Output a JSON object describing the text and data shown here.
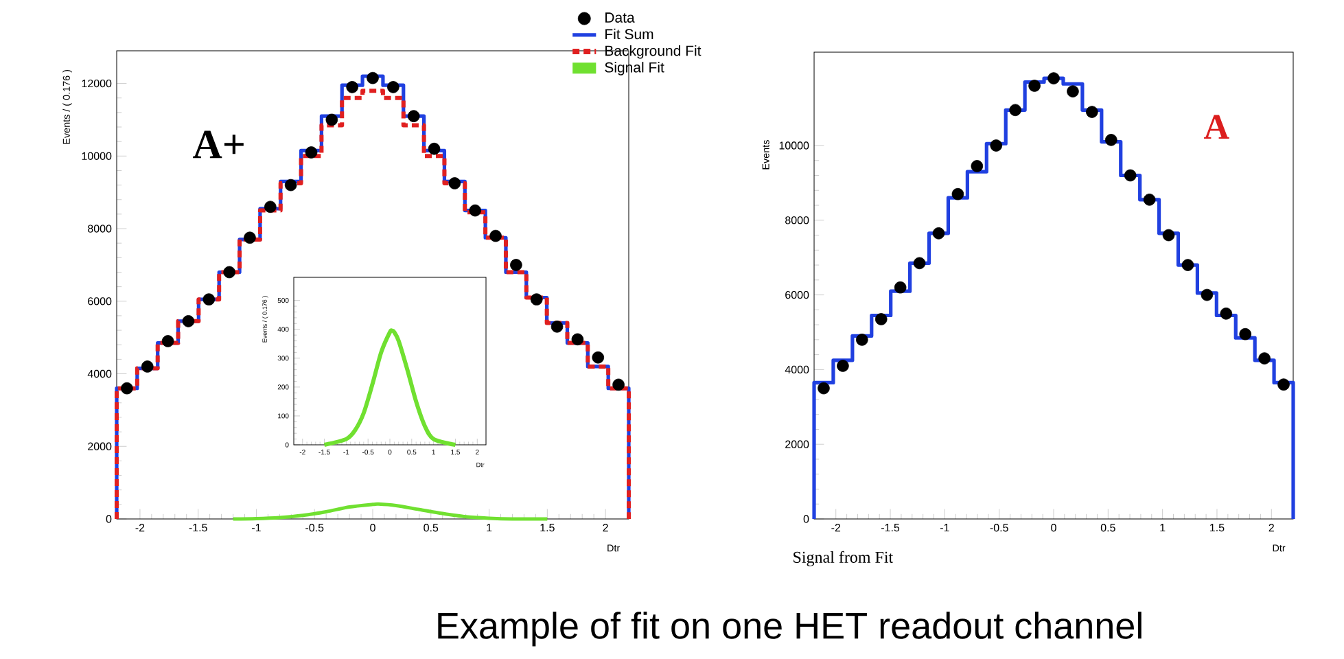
{
  "chart_data": [
    {
      "type": "histogram",
      "xlabel": "Dtr",
      "ylabel": "Events / ( 0.176 )",
      "annotations": [
        "A+",
        "Example of fit on one HET readout channel"
      ],
      "bins": [
        -2.2,
        -2.024,
        -1.848,
        -1.672,
        -1.496,
        -1.32,
        -1.144,
        -0.968,
        -0.792,
        -0.616,
        -0.44,
        -0.264,
        -0.088,
        0.088,
        0.264,
        0.44,
        0.616,
        0.792,
        0.968,
        1.144,
        1.32,
        1.496,
        1.672,
        1.848,
        2.024,
        2.2
      ],
      "xlim": [
        -2.2,
        2.2
      ],
      "ylim": [
        0,
        12900
      ],
      "xticks": [
        -2,
        -1.5,
        -1,
        -0.5,
        0,
        0.5,
        1,
        1.5,
        2
      ],
      "yticks": [
        0,
        2000,
        4000,
        6000,
        8000,
        10000,
        12000
      ],
      "legend": "top right",
      "grid": false,
      "series": [
        {
          "name": "Data",
          "type": "scatter",
          "color": "#000000",
          "x": [
            -2.112,
            -1.936,
            -1.76,
            -1.584,
            -1.408,
            -1.232,
            -1.056,
            -0.88,
            -0.704,
            -0.528,
            -0.352,
            -0.176,
            0,
            0.176,
            0.352,
            0.528,
            0.704,
            0.88,
            1.056,
            1.232,
            1.408,
            1.584,
            1.76,
            1.936,
            2.112
          ],
          "values": [
            3600,
            4200,
            4900,
            5450,
            6050,
            6800,
            7750,
            8600,
            9200,
            10100,
            11000,
            11900,
            12150,
            11900,
            11100,
            10200,
            9250,
            8500,
            7800,
            7000,
            6050,
            5300,
            4950,
            4450,
            3700
          ]
        },
        {
          "name": "Fit Sum",
          "color": "#2040e0",
          "values": [
            3600,
            4150,
            4850,
            5450,
            6050,
            6800,
            7700,
            8550,
            9300,
            10150,
            11100,
            11950,
            12200,
            11950,
            11100,
            10150,
            9300,
            8500,
            7750,
            6800,
            6100,
            5400,
            4850,
            4200,
            3600
          ]
        },
        {
          "name": "Background Fit",
          "color": "#e02020",
          "line_style": "dashed",
          "values": [
            3600,
            4150,
            4850,
            5450,
            6050,
            6800,
            7700,
            8500,
            9250,
            10000,
            10850,
            11600,
            11800,
            11600,
            10850,
            10000,
            9250,
            8450,
            7750,
            6800,
            6100,
            5400,
            4850,
            4200,
            3600
          ]
        },
        {
          "name": "Signal Fit",
          "type": "line",
          "color": "#70e030",
          "x": [
            -1.2,
            -1,
            -0.8,
            -0.6,
            -0.4,
            -0.2,
            0,
            0.05,
            0.2,
            0.4,
            0.6,
            0.8,
            1,
            1.2,
            1.5
          ],
          "values": [
            0,
            10,
            40,
            100,
            200,
            330,
            400,
            410,
            370,
            260,
            150,
            60,
            20,
            0,
            0
          ]
        }
      ]
    },
    {
      "type": "histogram",
      "xlabel": "Dtr",
      "ylabel": "Events",
      "annotations": [
        "A",
        "Signal from Fit"
      ],
      "bins": [
        -2.2,
        -2.024,
        -1.848,
        -1.672,
        -1.496,
        -1.32,
        -1.144,
        -0.968,
        -0.792,
        -0.616,
        -0.44,
        -0.264,
        -0.088,
        0.088,
        0.264,
        0.44,
        0.616,
        0.792,
        0.968,
        1.144,
        1.32,
        1.496,
        1.672,
        1.848,
        2.024,
        2.2
      ],
      "xlim": [
        -2.2,
        2.2
      ],
      "ylim": [
        0,
        12500
      ],
      "xticks": [
        -2,
        -1.5,
        -1,
        -0.5,
        0,
        0.5,
        1,
        1.5,
        2
      ],
      "yticks": [
        0,
        2000,
        4000,
        6000,
        8000,
        10000
      ],
      "grid": false,
      "series": [
        {
          "type": "scatter",
          "color": "#000000",
          "x": [
            -2.112,
            -1.936,
            -1.76,
            -1.584,
            -1.408,
            -1.232,
            -1.056,
            -0.88,
            -0.704,
            -0.528,
            -0.352,
            -0.176,
            0,
            0.176,
            0.352,
            0.528,
            0.704,
            0.88,
            1.056,
            1.232,
            1.408,
            1.584,
            1.76,
            1.936,
            2.112
          ],
          "values": [
            3500,
            4100,
            4800,
            5350,
            6200,
            6850,
            7650,
            8700,
            9450,
            10000,
            10950,
            11600,
            11800,
            11450,
            10900,
            10150,
            9200,
            8550,
            7600,
            6800,
            6000,
            5500,
            4950,
            4300,
            3600
          ]
        },
        {
          "color": "#2040e0",
          "values": [
            3650,
            4250,
            4900,
            5450,
            6100,
            6850,
            7650,
            8600,
            9300,
            10050,
            10950,
            11700,
            11800,
            11650,
            10950,
            10100,
            9200,
            8550,
            7650,
            6800,
            6050,
            5450,
            4850,
            4250,
            3650
          ]
        }
      ]
    },
    {
      "type": "line",
      "xlabel": "Dtr",
      "ylabel": "Events / ( 0.176 )",
      "xlim": [
        -2.2,
        2.2
      ],
      "ylim": [
        0,
        580
      ],
      "xticks": [
        -2,
        -1.5,
        -1,
        -0.5,
        0,
        0.5,
        1,
        1.5,
        2
      ],
      "yticks": [
        0,
        100,
        200,
        300,
        400,
        500
      ],
      "grid": false,
      "series": [
        {
          "color": "#70e030",
          "x": [
            -1.5,
            -1,
            -0.8,
            -0.6,
            -0.4,
            -0.2,
            0,
            0.05,
            0.1,
            0.2,
            0.4,
            0.6,
            0.8,
            1,
            1.5
          ],
          "values": [
            0,
            20,
            50,
            110,
            210,
            320,
            390,
            395,
            390,
            360,
            260,
            150,
            65,
            20,
            0
          ]
        }
      ]
    }
  ]
}
